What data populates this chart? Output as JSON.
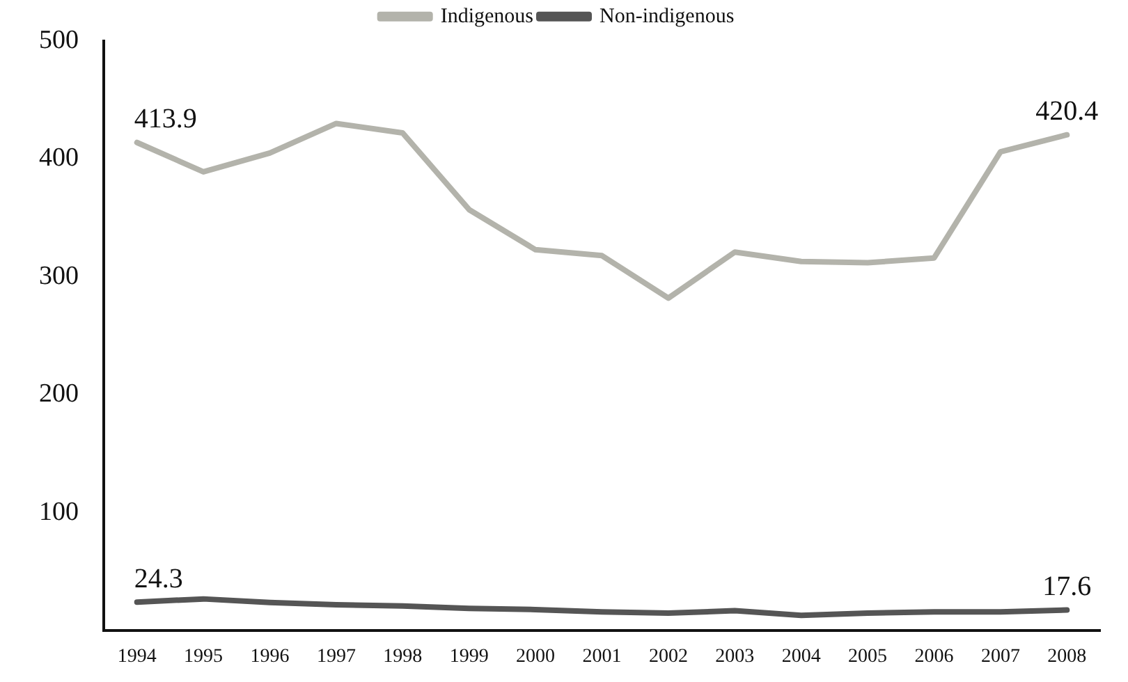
{
  "chart_data": {
    "type": "line",
    "categories": [
      "1994",
      "1995",
      "1996",
      "1997",
      "1998",
      "1999",
      "2000",
      "2001",
      "2002",
      "2003",
      "2004",
      "2005",
      "2006",
      "2007",
      "2008"
    ],
    "series": [
      {
        "name": "Indigenous",
        "color": "#b3b3ab",
        "values": [
          413.9,
          389,
          405,
          430,
          422,
          357,
          323,
          318,
          282,
          321,
          313,
          312,
          316,
          406,
          420.4
        ],
        "value_labels": [
          "413.9",
          null,
          null,
          null,
          null,
          null,
          null,
          null,
          null,
          null,
          null,
          null,
          null,
          null,
          "420.4"
        ]
      },
      {
        "name": "Non-indigenous",
        "color": "#555555",
        "values": [
          24.3,
          27,
          24,
          22,
          21,
          19,
          18,
          16,
          15,
          17,
          13,
          15,
          16,
          16,
          17.6
        ],
        "value_labels": [
          "24.3",
          null,
          null,
          null,
          null,
          null,
          null,
          null,
          null,
          null,
          null,
          null,
          null,
          null,
          "17.6"
        ]
      }
    ],
    "ylim": [
      0,
      500
    ],
    "yticks": [
      100,
      200,
      300,
      400,
      500
    ],
    "grid": false,
    "legend": "top",
    "marker": "none",
    "line_style": "solid"
  }
}
